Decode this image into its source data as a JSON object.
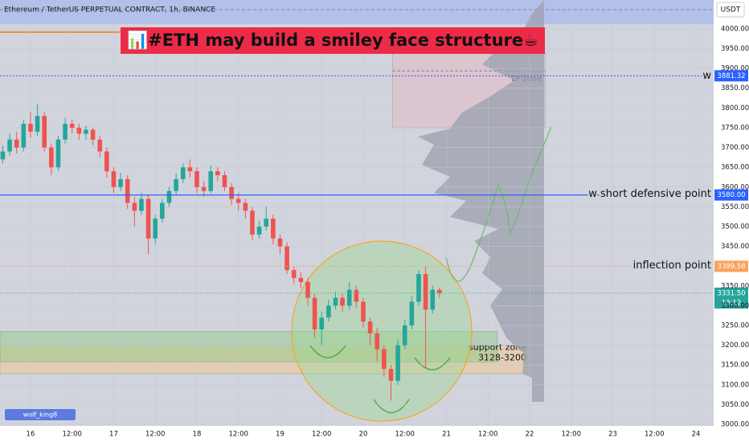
{
  "chart_data": {
    "type": "candlestick",
    "header": "Ethereum / TetherUS PERPETUAL CONTRACT, 1h, BINANCE",
    "title": "📊#ETH may build a smiley face structure☕",
    "currency": "USDT",
    "author": "wolf_king8",
    "up_color": "#26a69a",
    "down_color": "#ef5350",
    "xlim": [
      -8.8,
      197.1
    ],
    "ylim": [
      2996,
      4073
    ],
    "xticks": [
      {
        "value": 0,
        "label": "16"
      },
      {
        "value": 12,
        "label": "12:00"
      },
      {
        "value": 24,
        "label": "17"
      },
      {
        "value": 36,
        "label": "12:00"
      },
      {
        "value": 48,
        "label": "18"
      },
      {
        "value": 60,
        "label": "12:00"
      },
      {
        "value": 72,
        "label": "19"
      },
      {
        "value": 84,
        "label": "12:00"
      },
      {
        "value": 96,
        "label": "20"
      },
      {
        "value": 108,
        "label": "12:00"
      },
      {
        "value": 120,
        "label": "21"
      },
      {
        "value": 132,
        "label": "12:00"
      },
      {
        "value": 144,
        "label": "22"
      },
      {
        "value": 156,
        "label": "12:00"
      },
      {
        "value": 168,
        "label": "23"
      },
      {
        "value": 180,
        "label": "12:00"
      },
      {
        "value": 192,
        "label": "24"
      }
    ],
    "yticks": [
      {
        "value": 3000,
        "label": "3000.00"
      },
      {
        "value": 3050,
        "label": "3050.00"
      },
      {
        "value": 3100,
        "label": "3100.00"
      },
      {
        "value": 3150,
        "label": "3150.00"
      },
      {
        "value": 3200,
        "label": "3200.00"
      },
      {
        "value": 3250,
        "label": "3250.00"
      },
      {
        "value": 3300,
        "label": "3300.00"
      },
      {
        "value": 3350,
        "label": "3350.00"
      },
      {
        "value": 3450,
        "label": "3450.00"
      },
      {
        "value": 3500,
        "label": "3500.00"
      },
      {
        "value": 3550,
        "label": "3550.00"
      },
      {
        "value": 3600,
        "label": "3600.00"
      },
      {
        "value": 3650,
        "label": "3650.00"
      },
      {
        "value": 3700,
        "label": "3700.00"
      },
      {
        "value": 3750,
        "label": "3750.00"
      },
      {
        "value": 3800,
        "label": "3800.00"
      },
      {
        "value": 3850,
        "label": "3850.00"
      },
      {
        "value": 3900,
        "label": "3900.00"
      },
      {
        "value": 3950,
        "label": "3950.00"
      },
      {
        "value": 4000,
        "label": "4000.00"
      }
    ],
    "x": [
      -8,
      -6,
      -4,
      -2,
      0,
      2,
      4,
      6,
      8,
      10,
      12,
      14,
      16,
      18,
      20,
      22,
      24,
      26,
      28,
      30,
      32,
      34,
      36,
      38,
      40,
      42,
      44,
      46,
      48,
      50,
      52,
      54,
      56,
      58,
      60,
      62,
      64,
      66,
      68,
      70,
      72,
      74,
      76,
      78,
      80,
      82,
      84,
      86,
      88,
      90,
      92,
      94,
      96,
      98,
      100,
      102,
      104,
      106,
      108,
      110,
      112,
      114,
      116,
      118
    ],
    "open": [
      3670,
      3690,
      3720,
      3700,
      3760,
      3740,
      3780,
      3700,
      3650,
      3720,
      3760,
      3750,
      3735,
      3745,
      3720,
      3690,
      3640,
      3600,
      3620,
      3560,
      3540,
      3570,
      3470,
      3520,
      3560,
      3590,
      3620,
      3650,
      3640,
      3600,
      3590,
      3640,
      3630,
      3600,
      3570,
      3560,
      3540,
      3480,
      3500,
      3520,
      3470,
      3450,
      3390,
      3370,
      3360,
      3320,
      3240,
      3270,
      3300,
      3320,
      3300,
      3340,
      3310,
      3260,
      3230,
      3190,
      3140,
      3110,
      3200,
      3250,
      3310,
      3380,
      3290,
      3340
    ],
    "high": [
      3705,
      3735,
      3740,
      3770,
      3790,
      3810,
      3790,
      3710,
      3730,
      3775,
      3770,
      3760,
      3755,
      3750,
      3730,
      3700,
      3650,
      3635,
      3630,
      3575,
      3585,
      3580,
      3530,
      3570,
      3600,
      3635,
      3660,
      3670,
      3650,
      3615,
      3655,
      3650,
      3640,
      3610,
      3585,
      3570,
      3550,
      3515,
      3550,
      3530,
      3480,
      3460,
      3400,
      3385,
      3370,
      3330,
      3285,
      3315,
      3335,
      3330,
      3360,
      3350,
      3320,
      3270,
      3245,
      3200,
      3150,
      3215,
      3265,
      3325,
      3390,
      3400,
      3350,
      3345
    ],
    "low": [
      3660,
      3680,
      3685,
      3690,
      3725,
      3730,
      3690,
      3630,
      3640,
      3710,
      3735,
      3720,
      3720,
      3705,
      3675,
      3625,
      3585,
      3590,
      3545,
      3500,
      3530,
      3430,
      3455,
      3510,
      3550,
      3580,
      3610,
      3625,
      3585,
      3575,
      3585,
      3615,
      3590,
      3555,
      3540,
      3520,
      3465,
      3470,
      3490,
      3455,
      3430,
      3380,
      3355,
      3345,
      3300,
      3220,
      3200,
      3260,
      3290,
      3285,
      3290,
      3295,
      3245,
      3200,
      3160,
      3120,
      3060,
      3100,
      3190,
      3240,
      3300,
      3140,
      3280,
      3320
    ],
    "close": [
      3690,
      3720,
      3700,
      3760,
      3740,
      3780,
      3700,
      3650,
      3720,
      3760,
      3750,
      3735,
      3745,
      3720,
      3690,
      3640,
      3600,
      3620,
      3560,
      3540,
      3570,
      3470,
      3520,
      3560,
      3590,
      3620,
      3650,
      3640,
      3600,
      3590,
      3640,
      3630,
      3600,
      3570,
      3560,
      3540,
      3480,
      3500,
      3520,
      3470,
      3450,
      3390,
      3370,
      3360,
      3320,
      3240,
      3270,
      3300,
      3320,
      3300,
      3340,
      3310,
      3260,
      3230,
      3190,
      3140,
      3110,
      3200,
      3250,
      3310,
      3380,
      3290,
      3340,
      3331.5
    ],
    "levels": [
      {
        "name": "w",
        "value": 3881.32,
        "price_label": "3881.32",
        "color": "#2962ff",
        "style": "dotted"
      },
      {
        "name": "w short defensive point",
        "value": 3580,
        "price_label": "3580.00",
        "color": "#2962ff",
        "style": "solid"
      },
      {
        "name": "inflection point",
        "value": 3399.58,
        "price_label": "3399.58",
        "color": "#f7a35c",
        "style": "dotted"
      }
    ],
    "last_price": {
      "value": 3331.5,
      "price_label": "3331.50",
      "countdown": "13:12",
      "color": "#26a69a"
    },
    "zones": [
      {
        "name": "TP zone",
        "x": [
          104.5,
          148.5
        ],
        "y": [
          3750,
          3940
        ],
        "color": "rgba(230,180,190,0.45)"
      },
      {
        "name": "support zone",
        "subtitle": "3128-3200",
        "x": [
          -8.8,
          144
        ],
        "y": [
          3128,
          3200
        ],
        "color": "rgba(245,200,140,0.5)"
      }
    ]
  }
}
